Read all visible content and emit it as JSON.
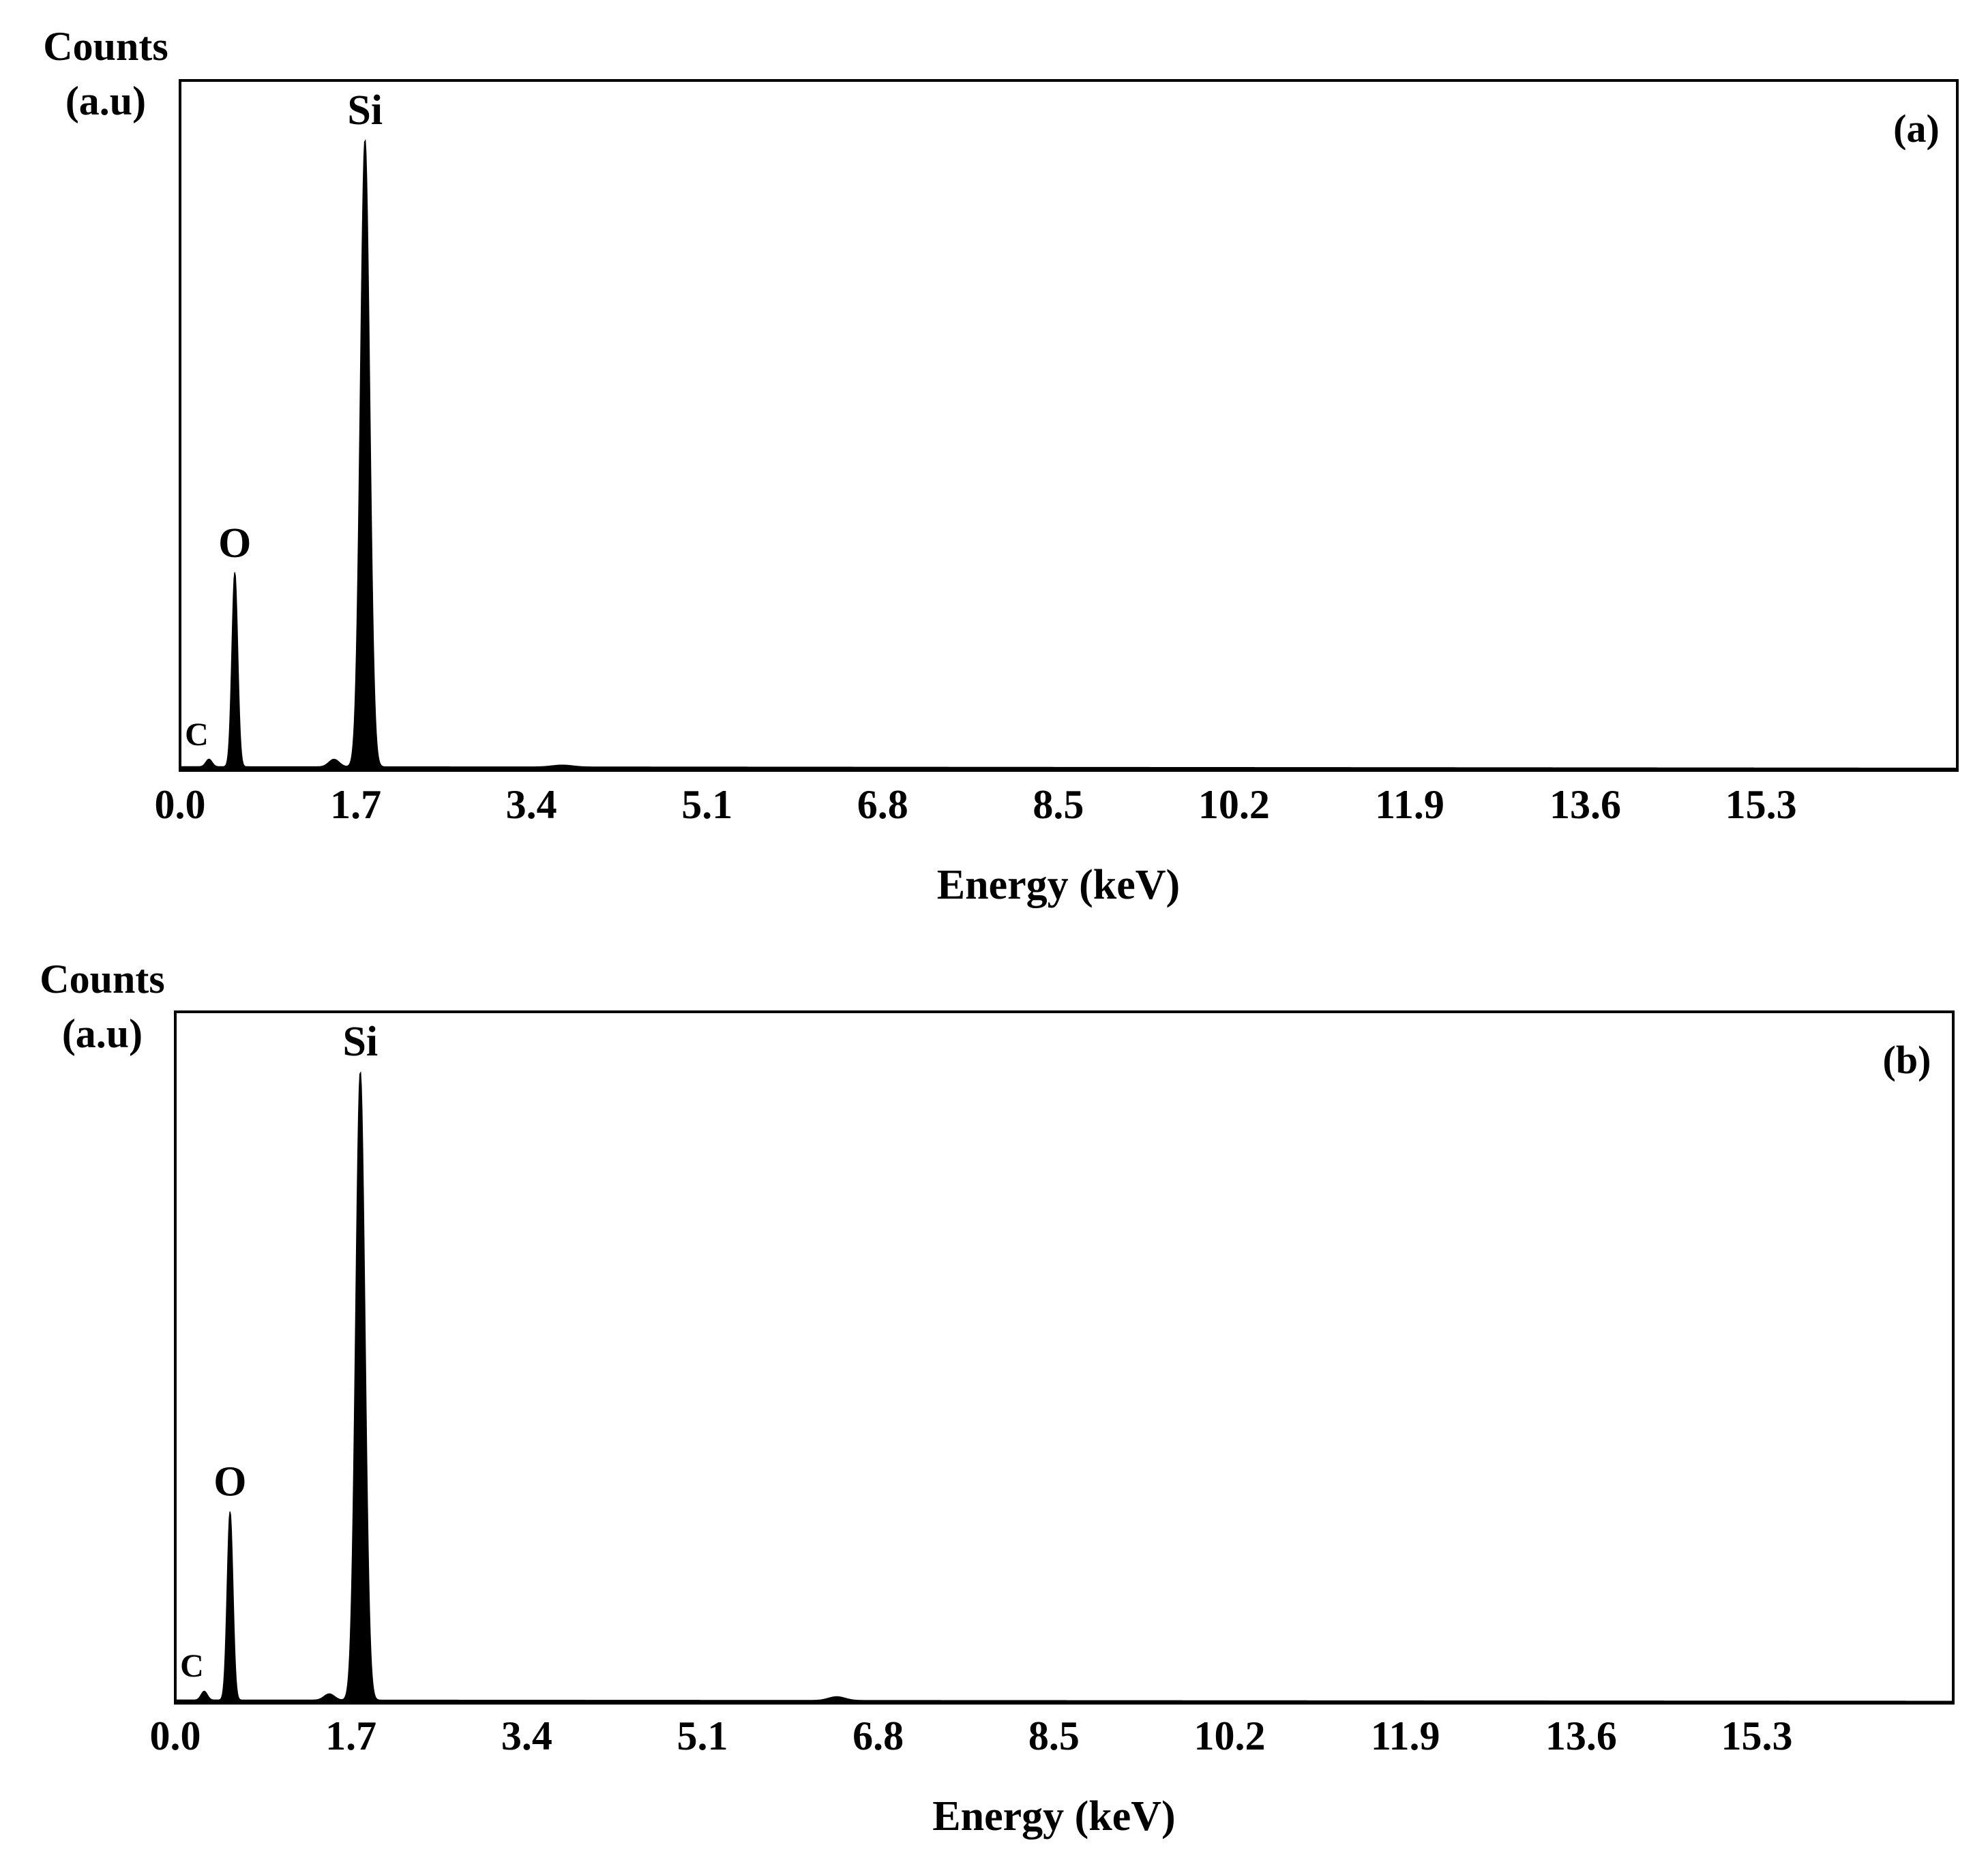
{
  "chart_data": [
    {
      "type": "line",
      "panel_label": "(a)",
      "ylabel_lines": [
        "Counts",
        "(a.u)"
      ],
      "xlabel": "Energy (keV)",
      "xlim": [
        0,
        17.2
      ],
      "ylim": [
        0,
        1.1
      ],
      "xticks": [
        "0.0",
        "1.7",
        "3.4",
        "5.1",
        "6.8",
        "8.5",
        "10.2",
        "11.9",
        "13.6",
        "15.3"
      ],
      "xtick_values": [
        0.0,
        1.7,
        3.4,
        5.1,
        6.8,
        8.5,
        10.2,
        11.9,
        13.6,
        15.3
      ],
      "peaks": [
        {
          "label": "C",
          "x": 0.28,
          "y": 0.012,
          "width": 0.03
        },
        {
          "label": "O",
          "x": 0.53,
          "y": 0.31,
          "width": 0.028
        },
        {
          "label": "",
          "x": 1.49,
          "y": 0.012,
          "width": 0.05
        },
        {
          "label": "Si",
          "x": 1.79,
          "y": 1.0,
          "width": 0.045
        },
        {
          "label": "",
          "x": 3.7,
          "y": 0.003,
          "width": 0.1
        }
      ],
      "baseline": 0.006
    },
    {
      "type": "line",
      "panel_label": "(b)",
      "ylabel_lines": [
        "Counts",
        "(a.u)"
      ],
      "xlabel": "Energy (keV)",
      "xlim": [
        0,
        17.2
      ],
      "ylim": [
        0,
        1.1
      ],
      "xticks": [
        "0.0",
        "1.7",
        "3.4",
        "5.1",
        "6.8",
        "8.5",
        "10.2",
        "11.9",
        "13.6",
        "15.3"
      ],
      "xtick_values": [
        0.0,
        1.7,
        3.4,
        5.1,
        6.8,
        8.5,
        10.2,
        11.9,
        13.6,
        15.3
      ],
      "peaks": [
        {
          "label": "C",
          "x": 0.28,
          "y": 0.014,
          "width": 0.03
        },
        {
          "label": "O",
          "x": 0.53,
          "y": 0.3,
          "width": 0.028
        },
        {
          "label": "",
          "x": 1.49,
          "y": 0.01,
          "width": 0.05
        },
        {
          "label": "Si",
          "x": 1.79,
          "y": 1.0,
          "width": 0.045
        },
        {
          "label": "",
          "x": 6.4,
          "y": 0.006,
          "width": 0.08
        }
      ],
      "baseline": 0.005
    }
  ]
}
